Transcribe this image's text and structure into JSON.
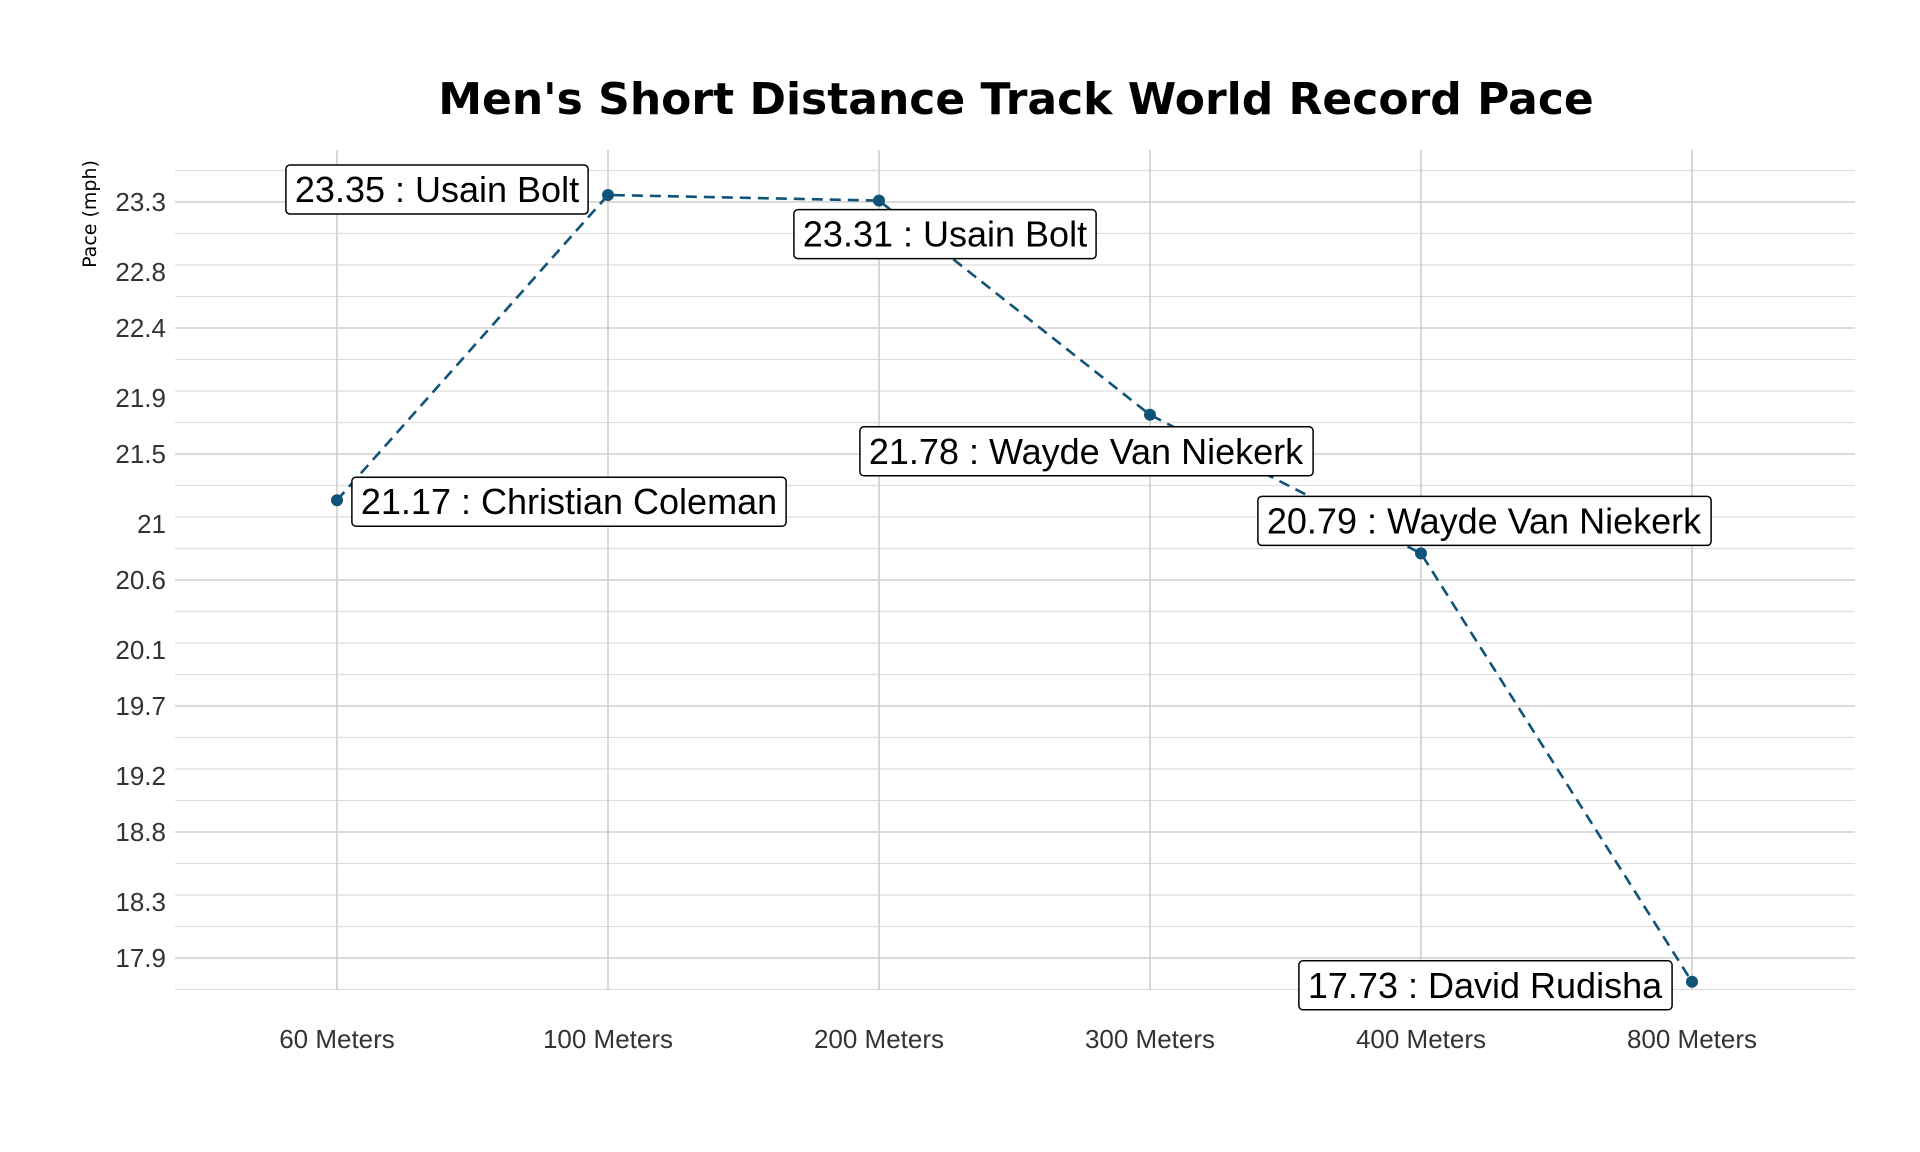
{
  "chart_data": {
    "type": "line",
    "title": "Men's Short Distance Track World Record Pace",
    "xlabel": "",
    "ylabel": "Pace (mph)",
    "categories": [
      "60 Meters",
      "100 Meters",
      "200 Meters",
      "300 Meters",
      "400 Meters",
      "800 Meters"
    ],
    "y_ticks": [
      "17.9",
      "18.3",
      "18.8",
      "19.2",
      "19.7",
      "20.1",
      "20.6",
      "21",
      "21.5",
      "21.9",
      "22.4",
      "22.8",
      "23.3"
    ],
    "ylim": [
      17.55,
      23.7
    ],
    "line_style": "dashed",
    "grid": true,
    "series": [
      {
        "color": "#0f5478",
        "values": [
          21.17,
          23.35,
          23.31,
          21.78,
          20.79,
          17.73
        ],
        "labels": [
          "21.17 : Christian Coleman",
          "23.35 : Usain Bolt",
          "23.31 : Usain Bolt",
          "21.78 : Wayde Van Niekerk",
          "20.79 : Wayde Van Niekerk",
          "17.73 : David Rudisha"
        ]
      }
    ]
  }
}
